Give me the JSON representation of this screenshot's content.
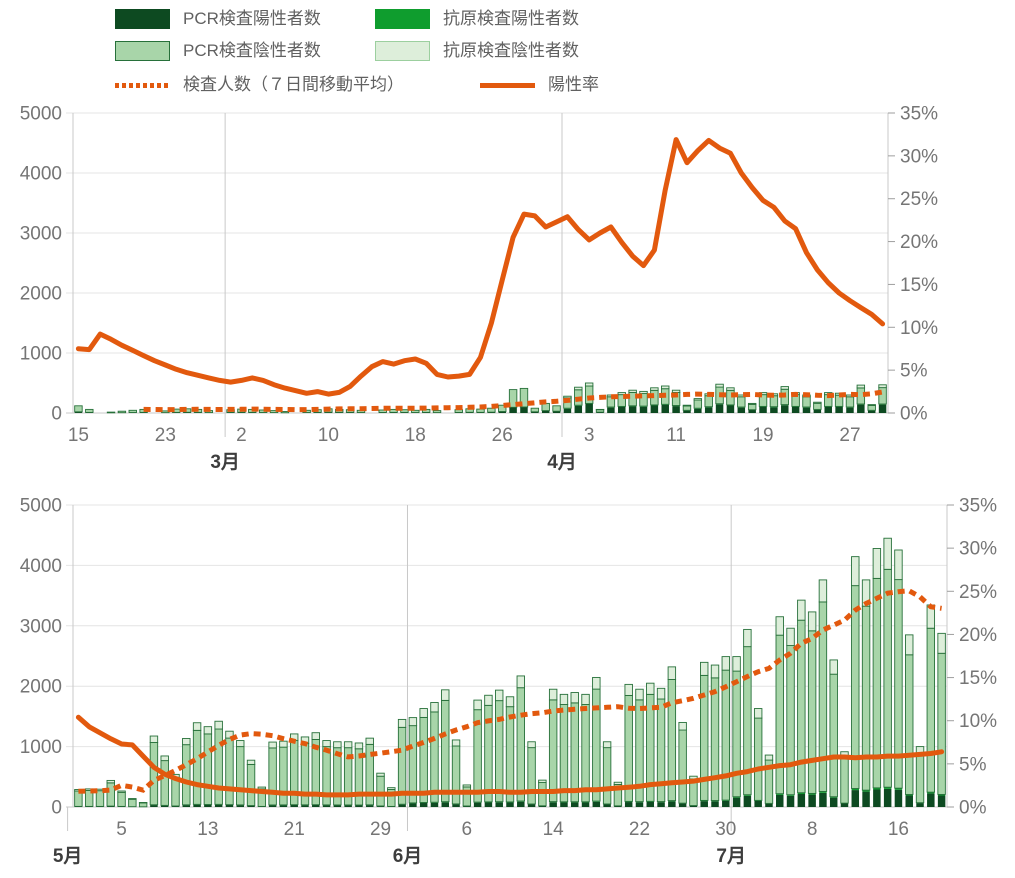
{
  "colors": {
    "orange": "#E2590E",
    "grid": "#e4e4e4",
    "axis": "#c9c9c9",
    "tick": "#9e9e9e",
    "label": "#757575",
    "month_label": "#3d3d3d",
    "bar_border": "#27703a",
    "pcr_positive": "#0d4a21",
    "antigen_positive": "#0f9d2e",
    "pcr_negative": "#a8d5a9",
    "antigen_negative": "#ddeeda",
    "background": "#ffffff"
  },
  "legend": {
    "items": [
      {
        "label": "PCR検査陽性者数",
        "swatch": "box",
        "color": "#0d4a21"
      },
      {
        "label": "抗原検査陽性者数",
        "swatch": "box",
        "color": "#0f9d2e"
      },
      {
        "label": "PCR検査陰性者数",
        "swatch": "box",
        "color": "#a8d5a9",
        "border": "#27703a"
      },
      {
        "label": "抗原検査陰性者数",
        "swatch": "box",
        "color": "#ddeeda",
        "border": "#9ccf9f"
      },
      {
        "label": "検査人数（７日間移動平均）",
        "swatch": "dotted-line",
        "color": "#E2590E"
      },
      {
        "label": "陽性率",
        "swatch": "solid-line",
        "color": "#E2590E"
      }
    ]
  },
  "chart_data": [
    {
      "type": "bar",
      "subtype": "stacked-bars-with-lines",
      "title": "",
      "xlabel": "",
      "ylabel_left": "",
      "ylabel_right": "",
      "num_days": 75,
      "y_left": {
        "min": 0,
        "max": 5000,
        "ticks": [
          0,
          1000,
          2000,
          3000,
          4000,
          5000
        ],
        "labels": [
          "0",
          "1000",
          "2000",
          "3000",
          "4000",
          "5000"
        ]
      },
      "y_right": {
        "min": 0,
        "max": 35,
        "ticks": [
          0,
          5,
          10,
          15,
          20,
          25,
          30,
          35
        ],
        "labels": [
          "0%",
          "5%",
          "10%",
          "15%",
          "20%",
          "25%",
          "30%",
          "35%"
        ]
      },
      "x_ticks": [
        {
          "day": 0,
          "label": "15"
        },
        {
          "day": 8,
          "label": "23"
        },
        {
          "day": 15,
          "label": "2"
        },
        {
          "day": 23,
          "label": "10"
        },
        {
          "day": 31,
          "label": "18"
        },
        {
          "day": 39,
          "label": "26"
        },
        {
          "day": 47,
          "label": "3"
        },
        {
          "day": 55,
          "label": "11"
        },
        {
          "day": 63,
          "label": "19"
        },
        {
          "day": 71,
          "label": "27"
        }
      ],
      "months": [
        {
          "day": 13.5,
          "label": "3月"
        },
        {
          "day": 44.5,
          "label": "4月"
        }
      ],
      "series": {
        "pcr_positive": [
          20,
          10,
          0,
          3,
          5,
          8,
          10,
          0,
          6,
          10,
          12,
          10,
          7,
          0,
          10,
          12,
          10,
          8,
          7,
          4,
          0,
          8,
          10,
          12,
          10,
          10,
          8,
          0,
          9,
          10,
          10,
          8,
          10,
          7,
          0,
          10,
          12,
          11,
          14,
          25,
          95,
          100,
          20,
          40,
          30,
          70,
          120,
          150,
          15,
          90,
          100,
          110,
          105,
          125,
          135,
          115,
          40,
          70,
          95,
          145,
          125,
          90,
          50,
          100,
          95,
          130,
          100,
          90,
          55,
          100,
          100,
          90,
          140,
          40,
          140
        ],
        "antigen_positive": [
          0,
          0,
          0,
          0,
          0,
          0,
          0,
          0,
          0,
          0,
          0,
          0,
          0,
          0,
          0,
          0,
          0,
          0,
          0,
          0,
          0,
          0,
          0,
          0,
          0,
          0,
          0,
          0,
          0,
          0,
          0,
          0,
          0,
          0,
          0,
          0,
          0,
          0,
          0,
          0,
          0,
          0,
          0,
          0,
          0,
          10,
          10,
          10,
          0,
          10,
          10,
          10,
          10,
          10,
          10,
          10,
          5,
          10,
          10,
          10,
          10,
          10,
          5,
          10,
          10,
          10,
          10,
          10,
          5,
          10,
          10,
          10,
          10,
          5,
          10
        ],
        "pcr_negative": [
          100,
          50,
          0,
          12,
          25,
          37,
          50,
          0,
          29,
          55,
          58,
          50,
          33,
          0,
          45,
          53,
          50,
          42,
          33,
          21,
          0,
          37,
          45,
          58,
          50,
          45,
          37,
          0,
          41,
          50,
          45,
          37,
          50,
          33,
          0,
          45,
          58,
          54,
          66,
          105,
          295,
          310,
          60,
          120,
          90,
          172,
          257,
          290,
          40,
          170,
          196,
          222,
          209,
          243,
          260,
          217,
          72,
          136,
          183,
          277,
          243,
          170,
          89,
          196,
          183,
          256,
          196,
          170,
          102,
          196,
          187,
          170,
          268,
          81,
          273
        ],
        "antigen_negative": [
          0,
          0,
          0,
          0,
          0,
          0,
          0,
          0,
          0,
          0,
          0,
          0,
          0,
          0,
          0,
          0,
          0,
          0,
          0,
          0,
          0,
          0,
          0,
          0,
          0,
          0,
          0,
          0,
          0,
          0,
          0,
          0,
          0,
          0,
          0,
          0,
          0,
          0,
          0,
          0,
          0,
          0,
          0,
          0,
          0,
          28,
          43,
          50,
          5,
          30,
          34,
          38,
          36,
          42,
          45,
          38,
          13,
          24,
          32,
          48,
          42,
          30,
          16,
          34,
          32,
          44,
          34,
          30,
          18,
          34,
          33,
          30,
          47,
          14,
          47
        ],
        "tested_7day_ma": [
          null,
          null,
          null,
          null,
          null,
          null,
          60,
          58,
          55,
          57,
          60,
          62,
          60,
          58,
          60,
          62,
          65,
          63,
          60,
          58,
          55,
          57,
          60,
          65,
          68,
          70,
          72,
          75,
          78,
          80,
          78,
          80,
          82,
          85,
          88,
          90,
          95,
          100,
          110,
          125,
          140,
          155,
          170,
          185,
          195,
          210,
          230,
          250,
          260,
          270,
          275,
          280,
          285,
          290,
          295,
          300,
          310,
          315,
          310,
          305,
          300,
          305,
          310,
          300,
          295,
          300,
          310,
          305,
          295,
          290,
          300,
          310,
          305,
          320,
          350
        ],
        "positivity_rate_pct": [
          7.5,
          7.4,
          9.2,
          8.6,
          7.9,
          7.3,
          6.7,
          6.1,
          5.6,
          5.1,
          4.7,
          4.4,
          4.1,
          3.8,
          3.6,
          3.8,
          4.1,
          3.8,
          3.3,
          2.9,
          2.6,
          2.3,
          2.5,
          2.2,
          2.4,
          3.1,
          4.3,
          5.4,
          6.0,
          5.7,
          6.1,
          6.3,
          5.8,
          4.5,
          4.2,
          4.3,
          4.5,
          6.5,
          10.5,
          15.5,
          20.5,
          23.2,
          23.0,
          21.7,
          22.3,
          22.9,
          21.4,
          20.2,
          21.0,
          21.7,
          19.9,
          18.3,
          17.2,
          19.0,
          26.0,
          31.9,
          29.2,
          30.6,
          31.8,
          30.9,
          30.3,
          28.0,
          26.3,
          24.8,
          24.0,
          22.4,
          21.5,
          18.7,
          16.7,
          15.2,
          14.0,
          13.1,
          12.3,
          11.5,
          10.4
        ]
      }
    },
    {
      "type": "bar",
      "subtype": "stacked-bars-with-lines",
      "title": "",
      "xlabel": "",
      "ylabel_left": "",
      "ylabel_right": "",
      "num_days": 81,
      "y_left": {
        "min": 0,
        "max": 5000,
        "ticks": [
          0,
          1000,
          2000,
          3000,
          4000,
          5000
        ],
        "labels": [
          "0",
          "1000",
          "2000",
          "3000",
          "4000",
          "5000"
        ]
      },
      "y_right": {
        "min": 0,
        "max": 35,
        "ticks": [
          0,
          5,
          10,
          15,
          20,
          25,
          30,
          35
        ],
        "labels": [
          "0%",
          "5%",
          "10%",
          "15%",
          "20%",
          "25%",
          "30%",
          "35%"
        ]
      },
      "x_ticks": [
        {
          "day": 4,
          "label": "5"
        },
        {
          "day": 12,
          "label": "13"
        },
        {
          "day": 20,
          "label": "21"
        },
        {
          "day": 28,
          "label": "29"
        },
        {
          "day": 36,
          "label": "6"
        },
        {
          "day": 44,
          "label": "14"
        },
        {
          "day": 52,
          "label": "22"
        },
        {
          "day": 60,
          "label": "30"
        },
        {
          "day": 68,
          "label": "8"
        },
        {
          "day": 76,
          "label": "16"
        }
      ],
      "months": [
        {
          "day": -1,
          "label": "5月",
          "below_only": true
        },
        {
          "day": 30.5,
          "label": "6月"
        },
        {
          "day": 60.5,
          "label": "7月"
        }
      ],
      "series": {
        "pcr_positive": [
          10,
          10,
          10,
          15,
          10,
          5,
          3,
          32,
          23,
          15,
          31,
          38,
          36,
          38,
          34,
          30,
          21,
          9,
          29,
          30,
          33,
          31,
          33,
          30,
          29,
          29,
          29,
          31,
          15,
          9,
          40,
          60,
          66,
          70,
          78,
          45,
          15,
          72,
          75,
          78,
          74,
          88,
          44,
          18,
          79,
          76,
          77,
          76,
          87,
          44,
          17,
          82,
          79,
          83,
          80,
          94,
          57,
          21,
          97,
          95,
          101,
          155,
          185,
          100,
          55,
          200,
          185,
          215,
          205,
          235,
          155,
          58,
          280,
          255,
          290,
          300,
          285,
          190,
          65,
          225,
          190
        ],
        "antigen_positive": [
          0,
          0,
          0,
          0,
          0,
          0,
          0,
          5,
          4,
          2,
          5,
          6,
          6,
          6,
          5,
          5,
          3,
          1,
          5,
          5,
          5,
          5,
          5,
          5,
          5,
          5,
          4,
          5,
          2,
          1,
          6,
          8,
          9,
          9,
          10,
          6,
          2,
          9,
          10,
          10,
          10,
          11,
          6,
          2,
          10,
          10,
          10,
          10,
          11,
          6,
          2,
          11,
          10,
          11,
          10,
          12,
          7,
          3,
          12,
          12,
          13,
          15,
          18,
          10,
          5,
          20,
          18,
          21,
          20,
          23,
          15,
          6,
          26,
          24,
          27,
          28,
          27,
          18,
          6,
          21,
          18
        ],
        "pcr_negative": [
          255,
          265,
          260,
          385,
          233,
          123,
          65,
          1031,
          741,
          474,
          996,
          1225,
          1168,
          1247,
          1102,
          965,
          681,
          290,
          944,
          956,
          1062,
          1019,
          1080,
          965,
          948,
          948,
          931,
          1001,
          493,
          281,
          1273,
          1279,
          1408,
          1495,
          1677,
          959,
          315,
          1530,
          1598,
          1673,
          1577,
          1876,
          933,
          385,
          1685,
          1611,
          1637,
          1611,
          1854,
          933,
          354,
          1754,
          1685,
          1771,
          1698,
          2005,
          1210,
          440,
          2070,
          2031,
          2152,
          2080,
          2452,
          1362,
          717,
          2625,
          2470,
          2857,
          2692,
          3137,
          2029,
          762,
          3359,
          3046,
          3468,
          3607,
          3453,
          2312,
          814,
          2714,
          2337
        ],
        "antigen_negative": [
          25,
          25,
          25,
          40,
          22,
          12,
          7,
          107,
          77,
          49,
          103,
          126,
          120,
          129,
          114,
          100,
          70,
          30,
          97,
          99,
          110,
          105,
          112,
          100,
          98,
          98,
          96,
          103,
          50,
          29,
          131,
          133,
          147,
          156,
          175,
          100,
          33,
          159,
          167,
          174,
          164,
          195,
          97,
          40,
          176,
          168,
          171,
          168,
          193,
          97,
          37,
          183,
          176,
          185,
          177,
          209,
          126,
          46,
          216,
          212,
          224,
          240,
          285,
          158,
          83,
          305,
          287,
          332,
          313,
          365,
          236,
          89,
          480,
          435,
          495,
          515,
          490,
          330,
          115,
          385,
          330
        ],
        "tested_7day_ma": [
          260,
          265,
          270,
          280,
          360,
          330,
          280,
          440,
          520,
          605,
          700,
          800,
          910,
          1020,
          1120,
          1190,
          1215,
          1205,
          1180,
          1130,
          1090,
          1050,
          990,
          940,
          880,
          830,
          845,
          870,
          890,
          915,
          940,
          1010,
          1070,
          1135,
          1210,
          1275,
          1330,
          1395,
          1425,
          1450,
          1490,
          1520,
          1545,
          1560,
          1590,
          1605,
          1620,
          1630,
          1640,
          1650,
          1660,
          1635,
          1630,
          1640,
          1650,
          1725,
          1760,
          1800,
          1855,
          1910,
          1990,
          2075,
          2160,
          2240,
          2295,
          2435,
          2545,
          2710,
          2790,
          2930,
          3010,
          3095,
          3260,
          3370,
          3455,
          3540,
          3565,
          3580,
          3480,
          3315,
          3290
        ],
        "positivity_rate_pct": [
          10.4,
          9.3,
          8.6,
          7.9,
          7.3,
          7.2,
          5.9,
          4.6,
          3.8,
          3.3,
          2.9,
          2.6,
          2.4,
          2.2,
          2.1,
          2.0,
          1.9,
          1.8,
          1.7,
          1.6,
          1.6,
          1.5,
          1.5,
          1.4,
          1.4,
          1.4,
          1.5,
          1.5,
          1.5,
          1.5,
          1.6,
          1.6,
          1.6,
          1.7,
          1.7,
          1.7,
          1.7,
          1.7,
          1.8,
          1.8,
          1.7,
          1.7,
          1.8,
          1.8,
          1.8,
          1.9,
          1.9,
          2.0,
          2.0,
          2.1,
          2.2,
          2.3,
          2.4,
          2.6,
          2.7,
          2.8,
          2.9,
          3.0,
          3.2,
          3.4,
          3.6,
          3.9,
          4.1,
          4.4,
          4.6,
          4.8,
          4.9,
          5.2,
          5.4,
          5.6,
          5.8,
          5.8,
          5.7,
          5.8,
          5.8,
          5.9,
          5.9,
          6.0,
          6.1,
          6.2,
          6.4
        ]
      }
    }
  ]
}
